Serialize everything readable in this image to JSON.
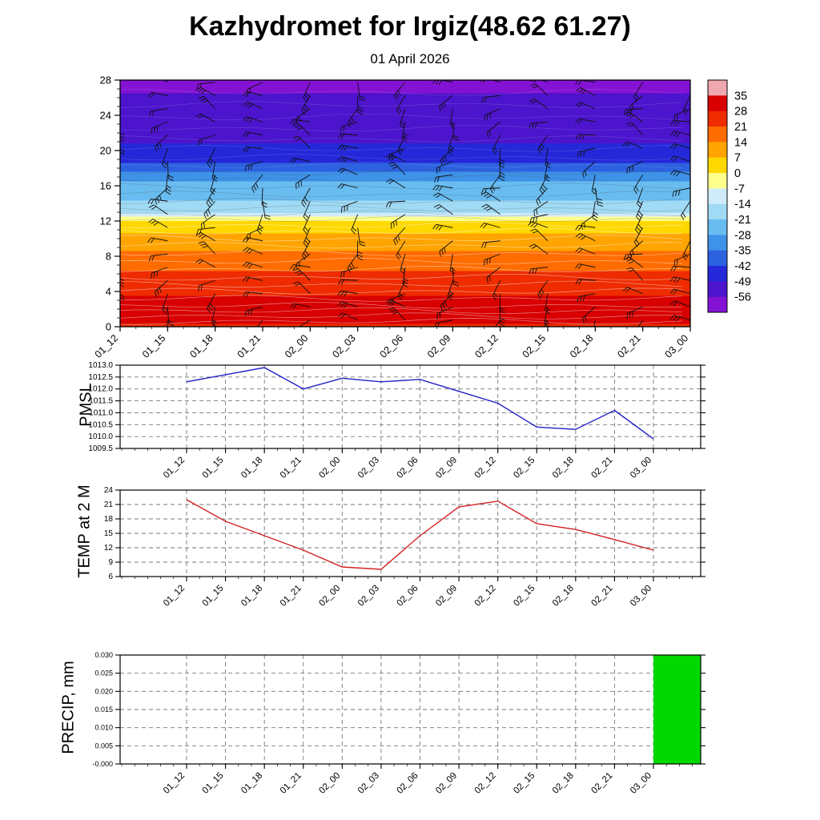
{
  "header": {
    "title": "Kazhydromet for Irgiz(48.62 61.27)",
    "subtitle": "01 April 2026"
  },
  "time_labels": [
    "01_12",
    "01_15",
    "01_18",
    "01_21",
    "02_00",
    "02_03",
    "02_06",
    "02_09",
    "02_12",
    "02_15",
    "02_18",
    "02_21",
    "03_00"
  ],
  "chart_data": [
    {
      "type": "heatmap",
      "name": "temperature-height cross-section with wind barbs",
      "ylim": [
        0,
        28
      ],
      "ylabel_ticks": [
        0,
        4,
        8,
        12,
        16,
        20,
        24,
        28
      ],
      "categories": [
        "01_12",
        "01_15",
        "01_18",
        "01_21",
        "02_00",
        "02_03",
        "02_06",
        "02_09",
        "02_12",
        "02_15",
        "02_18",
        "02_21",
        "03_00"
      ],
      "colorbar": {
        "tick_labels": [
          "35",
          "28",
          "21",
          "14",
          "7",
          "0",
          "-7",
          "-14",
          "-21",
          "-28",
          "-35",
          "-42",
          "-49",
          "-56"
        ],
        "segment_colors_top_to_bottom": [
          "#f0a8b0",
          "#d80000",
          "#ee2c00",
          "#ff6c00",
          "#ffa400",
          "#ffd800",
          "#ffff8c",
          "#d0ecfa",
          "#a0daf4",
          "#68bcf0",
          "#3e92e8",
          "#2c62e0",
          "#2428d8",
          "#4c14cc",
          "#8412d4"
        ]
      },
      "temperature_profile": [
        {
          "height_km": 28,
          "temp_c": -57
        },
        {
          "height_km": 25,
          "temp_c": -55
        },
        {
          "height_km": 22,
          "temp_c": -52
        },
        {
          "height_km": 20,
          "temp_c": -47
        },
        {
          "height_km": 19,
          "temp_c": -44
        },
        {
          "height_km": 18,
          "temp_c": -38
        },
        {
          "height_km": 17,
          "temp_c": -30
        },
        {
          "height_km": 16,
          "temp_c": -26
        },
        {
          "height_km": 15,
          "temp_c": -23
        },
        {
          "height_km": 14,
          "temp_c": -20
        },
        {
          "height_km": 13,
          "temp_c": -15
        },
        {
          "height_km": 12.5,
          "temp_c": -7
        },
        {
          "height_km": 12,
          "temp_c": 0
        },
        {
          "height_km": 11,
          "temp_c": 5
        },
        {
          "height_km": 10,
          "temp_c": 10
        },
        {
          "height_km": 8,
          "temp_c": 16
        },
        {
          "height_km": 6,
          "temp_c": 22
        },
        {
          "height_km": 4,
          "temp_c": 27
        },
        {
          "height_km": 2.5,
          "temp_c": 30
        },
        {
          "height_km": 2,
          "temp_c": 31
        },
        {
          "height_km": 1,
          "temp_c": 30
        },
        {
          "height_km": 0,
          "temp_c": 27
        }
      ],
      "wind_barbs_grid": {
        "columns": 13,
        "rows": 19
      }
    },
    {
      "type": "line",
      "name": "PMSL",
      "ylim": [
        1009.5,
        1013.0
      ],
      "y_step": 0.5,
      "y_decimals": 1,
      "color": "#2222c8",
      "categories": [
        "01_12",
        "01_15",
        "01_18",
        "01_21",
        "02_00",
        "02_03",
        "02_06",
        "02_09",
        "02_12",
        "02_15",
        "02_18",
        "02_21",
        "03_00"
      ],
      "values": [
        1012.3,
        1012.6,
        1012.9,
        1012.0,
        1012.45,
        1012.3,
        1012.4,
        1011.9,
        1011.4,
        1010.4,
        1010.3,
        1011.1,
        1009.9
      ]
    },
    {
      "type": "line",
      "name": "TEMP at 2 M",
      "ylim": [
        6,
        24
      ],
      "y_step": 3,
      "y_decimals": 0,
      "color": "#d42222",
      "categories": [
        "01_12",
        "01_15",
        "01_18",
        "01_21",
        "02_00",
        "02_03",
        "02_06",
        "02_09",
        "02_12",
        "02_15",
        "02_18",
        "02_21",
        "03_00"
      ],
      "values": [
        22,
        17.5,
        14.5,
        11.5,
        8,
        7.5,
        14.5,
        20.5,
        21.7,
        17,
        15.8,
        13.7,
        11.5
      ]
    },
    {
      "type": "bar",
      "name": "PRECIP, mm",
      "ylim": [
        0,
        0.03
      ],
      "y_step": 0.005,
      "y_decimals": 3,
      "color": "#00d800",
      "categories": [
        "01_12",
        "01_15",
        "01_18",
        "01_21",
        "02_00",
        "02_03",
        "02_06",
        "02_09",
        "02_12",
        "02_15",
        "02_18",
        "02_21",
        "03_00"
      ],
      "values": [
        0,
        0,
        0,
        0,
        0,
        0,
        0,
        0,
        0,
        0,
        0,
        0,
        0.03
      ]
    }
  ]
}
